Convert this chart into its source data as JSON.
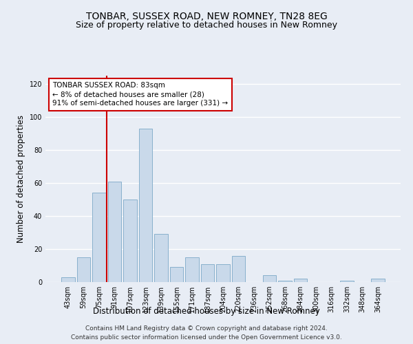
{
  "title": "TONBAR, SUSSEX ROAD, NEW ROMNEY, TN28 8EG",
  "subtitle": "Size of property relative to detached houses in New Romney",
  "xlabel": "Distribution of detached houses by size in New Romney",
  "ylabel": "Number of detached properties",
  "categories": [
    "43sqm",
    "59sqm",
    "75sqm",
    "91sqm",
    "107sqm",
    "123sqm",
    "139sqm",
    "155sqm",
    "171sqm",
    "187sqm",
    "204sqm",
    "220sqm",
    "236sqm",
    "252sqm",
    "268sqm",
    "284sqm",
    "300sqm",
    "316sqm",
    "332sqm",
    "348sqm",
    "364sqm"
  ],
  "values": [
    3,
    15,
    54,
    61,
    50,
    93,
    29,
    9,
    15,
    11,
    11,
    16,
    0,
    4,
    1,
    2,
    0,
    0,
    1,
    0,
    2
  ],
  "bar_color": "#c9d9ea",
  "bar_edge_color": "#88b0cc",
  "vline_color": "#cc0000",
  "vline_x": 2.5,
  "annotation_text": "TONBAR SUSSEX ROAD: 83sqm\n← 8% of detached houses are smaller (28)\n91% of semi-detached houses are larger (331) →",
  "annotation_box_color": "#ffffff",
  "annotation_box_edge": "#cc0000",
  "ylim": [
    0,
    125
  ],
  "yticks": [
    0,
    20,
    40,
    60,
    80,
    100,
    120
  ],
  "background_color": "#e8edf5",
  "grid_color": "#ffffff",
  "footer": "Contains HM Land Registry data © Crown copyright and database right 2024.\nContains public sector information licensed under the Open Government Licence v3.0.",
  "title_fontsize": 10,
  "subtitle_fontsize": 9,
  "xlabel_fontsize": 8.5,
  "ylabel_fontsize": 8.5,
  "tick_fontsize": 7,
  "footer_fontsize": 6.5,
  "ann_fontsize": 7.5
}
